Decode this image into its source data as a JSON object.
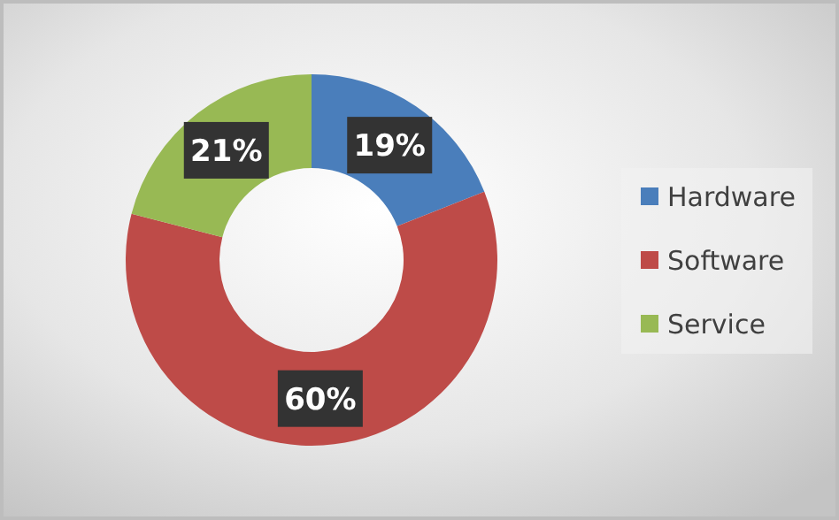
{
  "chart_data": {
    "type": "donut",
    "categories": [
      "Hardware",
      "Software",
      "Service"
    ],
    "values": [
      19,
      60,
      21
    ],
    "colors": [
      "#4a7ebb",
      "#be4b48",
      "#98b954"
    ],
    "value_labels": [
      "19%",
      "60%",
      "21%"
    ],
    "legend": "right"
  }
}
